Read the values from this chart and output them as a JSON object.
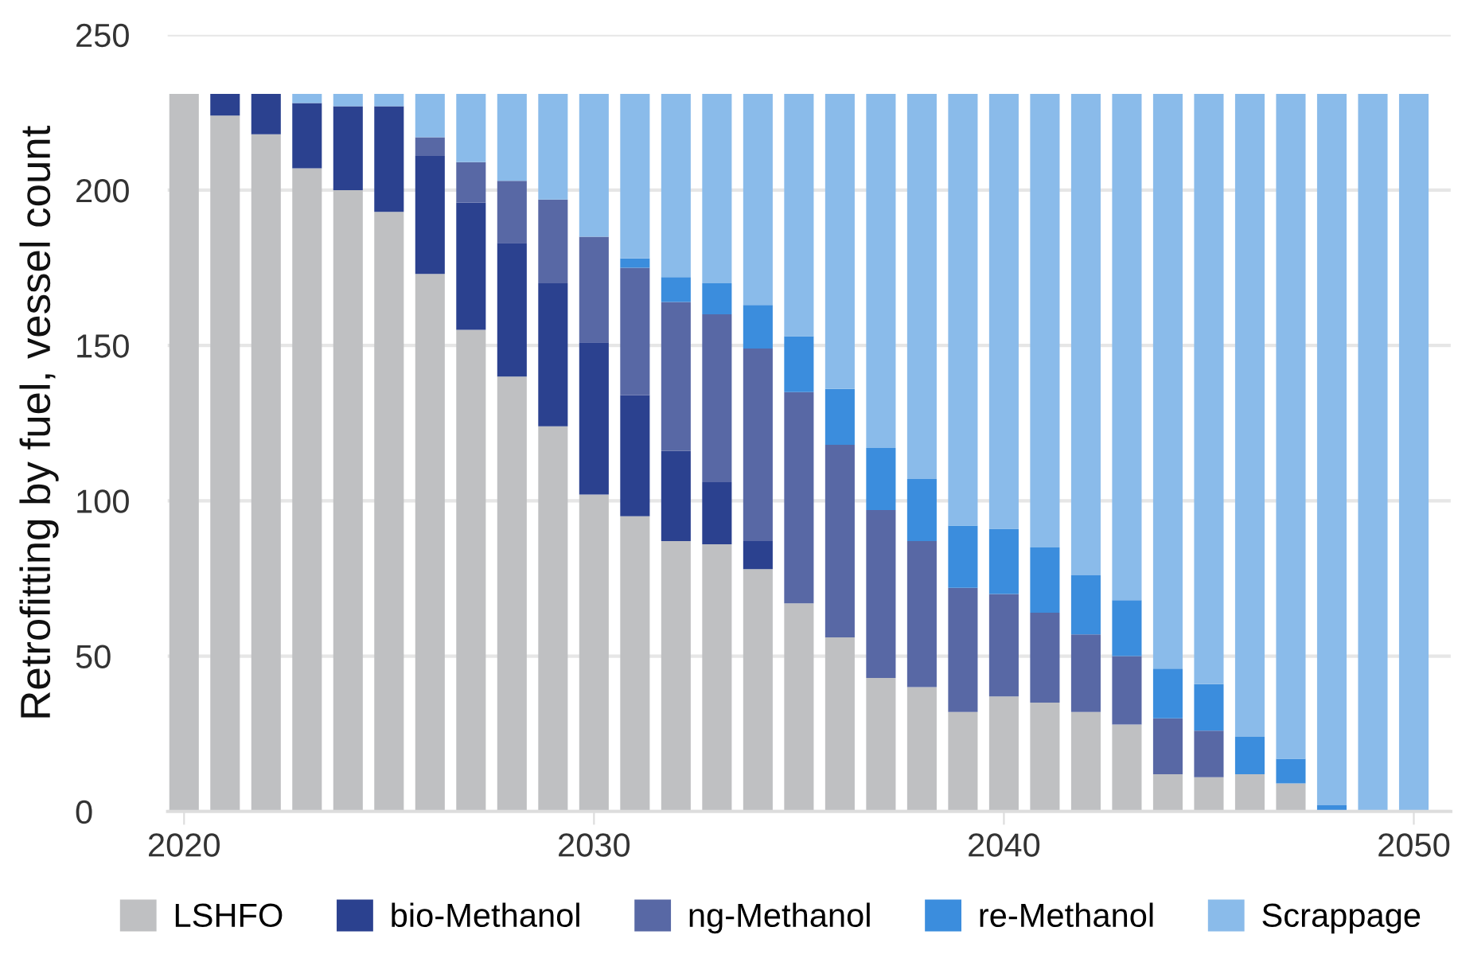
{
  "chart_data": {
    "type": "bar",
    "stacked": true,
    "ylabel": "Retrofitting by fuel, vessel count",
    "x": [
      2020,
      2021,
      2022,
      2023,
      2024,
      2025,
      2026,
      2027,
      2028,
      2029,
      2030,
      2031,
      2032,
      2033,
      2034,
      2035,
      2036,
      2037,
      2038,
      2039,
      2040,
      2041,
      2042,
      2043,
      2044,
      2045,
      2046,
      2047,
      2048,
      2049,
      2050
    ],
    "series": [
      {
        "name": "LSHFO",
        "color": "#bfc0c2",
        "values": [
          231,
          224,
          218,
          207,
          200,
          193,
          173,
          155,
          140,
          124,
          102,
          95,
          87,
          86,
          78,
          67,
          56,
          43,
          40,
          32,
          37,
          35,
          32,
          28,
          12,
          11,
          12,
          9,
          0,
          0,
          0
        ]
      },
      {
        "name": "bio-Methanol",
        "color": "#2b418f",
        "values": [
          0,
          7,
          13,
          21,
          27,
          34,
          38,
          41,
          43,
          46,
          49,
          39,
          29,
          20,
          9,
          0,
          0,
          0,
          0,
          0,
          0,
          0,
          0,
          0,
          0,
          0,
          0,
          0,
          0,
          0,
          0
        ]
      },
      {
        "name": "ng-Methanol",
        "color": "#5868a5",
        "values": [
          0,
          0,
          0,
          0,
          0,
          0,
          6,
          13,
          20,
          27,
          34,
          41,
          48,
          54,
          62,
          68,
          62,
          54,
          47,
          40,
          33,
          29,
          25,
          22,
          18,
          15,
          0,
          0,
          0,
          0,
          0
        ]
      },
      {
        "name": "re-Methanol",
        "color": "#3b8ddd",
        "values": [
          0,
          0,
          0,
          0,
          0,
          0,
          0,
          0,
          0,
          0,
          0,
          3,
          8,
          10,
          14,
          18,
          18,
          20,
          20,
          20,
          21,
          21,
          19,
          18,
          16,
          15,
          12,
          8,
          2,
          0,
          0
        ]
      },
      {
        "name": "Scrappage",
        "color": "#8abbea",
        "values": [
          0,
          0,
          0,
          3,
          4,
          4,
          14,
          22,
          28,
          34,
          46,
          53,
          59,
          61,
          68,
          78,
          95,
          114,
          124,
          139,
          140,
          146,
          155,
          163,
          185,
          190,
          207,
          214,
          229,
          231,
          231
        ]
      }
    ],
    "xlim": [
      2019.6,
      2050.9
    ],
    "xticks": [
      2020,
      2030,
      2040,
      2050
    ],
    "ylim": [
      0,
      250
    ],
    "yticks": [
      0,
      50,
      100,
      150,
      200,
      250
    ],
    "grid": "y",
    "legend": "bottom"
  }
}
